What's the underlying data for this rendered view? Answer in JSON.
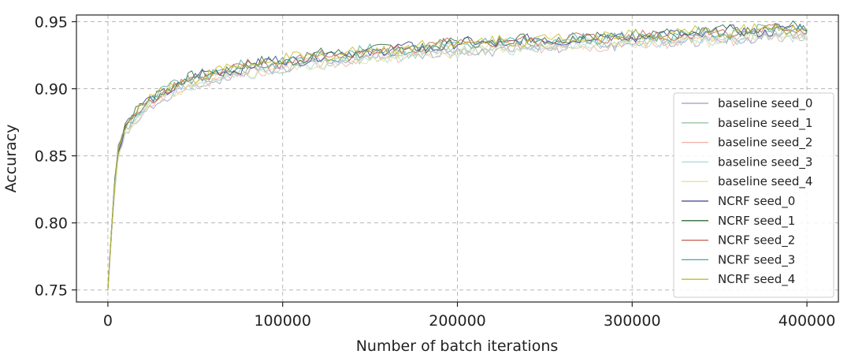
{
  "chart_data": {
    "type": "line",
    "title": "",
    "xlabel": "Number of batch iterations",
    "ylabel": "Accuracy",
    "xlim": [
      -18000,
      418000
    ],
    "ylim": [
      0.741,
      0.955
    ],
    "xticks": [
      0,
      100000,
      200000,
      300000,
      400000
    ],
    "xtick_labels": [
      "0",
      "100000",
      "200000",
      "300000",
      "400000"
    ],
    "yticks": [
      0.75,
      0.8,
      0.85,
      0.9,
      0.95
    ],
    "ytick_labels": [
      "0.75",
      "0.80",
      "0.85",
      "0.90",
      "0.95"
    ],
    "grid": true,
    "grid_style": "dashed",
    "legend_position": "right",
    "x_points": [
      0,
      2500,
      5000,
      10000,
      20000,
      30000,
      40000,
      50000,
      60000,
      80000,
      100000,
      120000,
      140000,
      160000,
      180000,
      200000,
      230000,
      260000,
      300000,
      340000,
      370000,
      400000
    ],
    "series": [
      {
        "name": "baseline seed_0",
        "color": "#9a9ac8",
        "values": [
          0.75,
          0.8,
          0.845,
          0.868,
          0.883,
          0.893,
          0.899,
          0.903,
          0.907,
          0.912,
          0.916,
          0.919,
          0.922,
          0.924,
          0.926,
          0.928,
          0.93,
          0.932,
          0.934,
          0.936,
          0.938,
          0.94
        ]
      },
      {
        "name": "baseline seed_1",
        "color": "#98c4a4",
        "values": [
          0.75,
          0.802,
          0.846,
          0.869,
          0.884,
          0.894,
          0.9,
          0.904,
          0.908,
          0.913,
          0.917,
          0.92,
          0.922,
          0.925,
          0.927,
          0.929,
          0.931,
          0.933,
          0.935,
          0.937,
          0.939,
          0.941
        ]
      },
      {
        "name": "baseline seed_2",
        "color": "#f0b0a8",
        "values": [
          0.75,
          0.799,
          0.844,
          0.867,
          0.882,
          0.892,
          0.898,
          0.903,
          0.907,
          0.912,
          0.916,
          0.919,
          0.921,
          0.924,
          0.926,
          0.928,
          0.93,
          0.932,
          0.934,
          0.936,
          0.938,
          0.94
        ]
      },
      {
        "name": "baseline seed_3",
        "color": "#a8d8e0",
        "values": [
          0.75,
          0.801,
          0.845,
          0.868,
          0.883,
          0.893,
          0.899,
          0.904,
          0.908,
          0.912,
          0.916,
          0.919,
          0.922,
          0.924,
          0.926,
          0.928,
          0.93,
          0.932,
          0.934,
          0.936,
          0.938,
          0.94
        ]
      },
      {
        "name": "baseline seed_4",
        "color": "#e8e098",
        "values": [
          0.75,
          0.8,
          0.846,
          0.869,
          0.884,
          0.893,
          0.899,
          0.903,
          0.907,
          0.912,
          0.916,
          0.919,
          0.921,
          0.924,
          0.926,
          0.928,
          0.93,
          0.932,
          0.934,
          0.936,
          0.938,
          0.94
        ]
      },
      {
        "name": "NCRF seed_0",
        "color": "#3a3a90",
        "values": [
          0.75,
          0.805,
          0.85,
          0.872,
          0.888,
          0.897,
          0.903,
          0.908,
          0.912,
          0.917,
          0.921,
          0.924,
          0.927,
          0.929,
          0.931,
          0.933,
          0.935,
          0.937,
          0.939,
          0.941,
          0.943,
          0.945
        ]
      },
      {
        "name": "NCRF seed_1",
        "color": "#2e6b38",
        "values": [
          0.75,
          0.806,
          0.851,
          0.873,
          0.889,
          0.898,
          0.904,
          0.909,
          0.912,
          0.918,
          0.921,
          0.925,
          0.927,
          0.93,
          0.932,
          0.934,
          0.936,
          0.938,
          0.94,
          0.942,
          0.944,
          0.946
        ]
      },
      {
        "name": "NCRF seed_2",
        "color": "#c06050",
        "values": [
          0.75,
          0.804,
          0.849,
          0.871,
          0.887,
          0.897,
          0.903,
          0.908,
          0.911,
          0.917,
          0.92,
          0.924,
          0.926,
          0.929,
          0.931,
          0.933,
          0.935,
          0.937,
          0.939,
          0.941,
          0.943,
          0.945
        ]
      },
      {
        "name": "NCRF seed_3",
        "color": "#48a8a0",
        "values": [
          0.75,
          0.805,
          0.85,
          0.872,
          0.888,
          0.897,
          0.903,
          0.908,
          0.912,
          0.917,
          0.921,
          0.924,
          0.927,
          0.929,
          0.931,
          0.933,
          0.935,
          0.937,
          0.939,
          0.941,
          0.943,
          0.945
        ]
      },
      {
        "name": "NCRF seed_4",
        "color": "#c8b820",
        "values": [
          0.75,
          0.806,
          0.851,
          0.873,
          0.889,
          0.898,
          0.904,
          0.909,
          0.912,
          0.918,
          0.921,
          0.925,
          0.927,
          0.93,
          0.932,
          0.934,
          0.936,
          0.938,
          0.94,
          0.942,
          0.944,
          0.946
        ]
      }
    ]
  }
}
